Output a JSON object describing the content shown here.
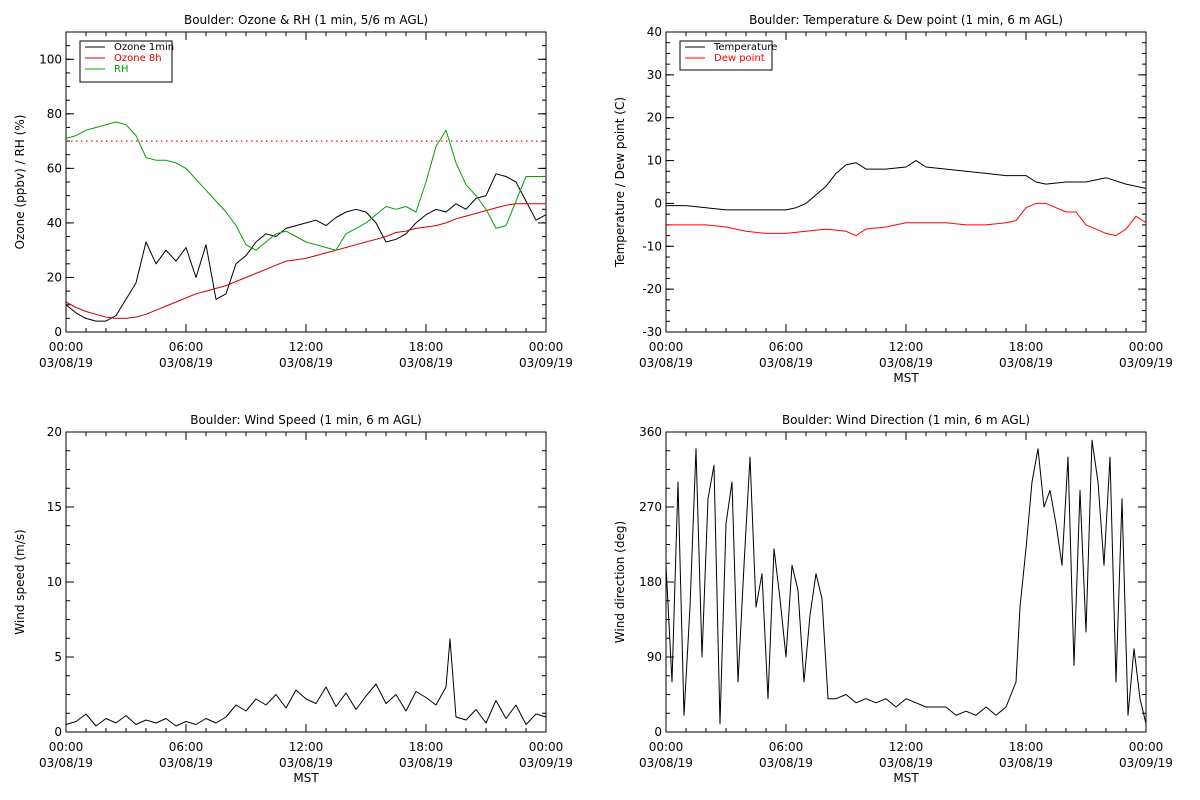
{
  "chart_data": [
    {
      "type": "line",
      "title": "Boulder: Ozone & RH (1 min, 5/6 m AGL)",
      "ylabel": "Ozone (ppbv) / RH (%)",
      "xlabel": "",
      "xlim": [
        0,
        24
      ],
      "ylim": [
        0,
        110
      ],
      "yticks": [
        0,
        20,
        40,
        60,
        80,
        100
      ],
      "xticks": [
        {
          "hour": 0,
          "time": "00:00",
          "date": "03/08/19"
        },
        {
          "hour": 6,
          "time": "06:00",
          "date": "03/08/19"
        },
        {
          "hour": 12,
          "time": "12:00",
          "date": "03/08/19"
        },
        {
          "hour": 18,
          "time": "18:00",
          "date": "03/08/19"
        },
        {
          "hour": 24,
          "time": "00:00",
          "date": "03/09/19"
        }
      ],
      "legend_position": "top-left",
      "reference_line": {
        "y": 70,
        "color": "#ff0000",
        "style": "dotted"
      },
      "series": [
        {
          "name": "Ozone 1min",
          "color": "#000000",
          "x": [
            0,
            0.5,
            1,
            1.5,
            2,
            2.5,
            3,
            3.5,
            4,
            4.5,
            5,
            5.5,
            6,
            6.5,
            7,
            7.5,
            8,
            8.5,
            9,
            9.5,
            10,
            10.5,
            11,
            11.5,
            12,
            12.5,
            13,
            13.5,
            14,
            14.5,
            15,
            15.5,
            16,
            16.5,
            17,
            17.5,
            18,
            18.5,
            19,
            19.5,
            20,
            20.5,
            21,
            21.5,
            22,
            22.5,
            23,
            23.5,
            24
          ],
          "y": [
            10,
            7,
            5,
            4,
            4,
            6,
            12,
            18,
            33,
            25,
            30,
            26,
            31,
            20,
            32,
            12,
            14,
            25,
            28,
            33,
            36,
            35,
            38,
            39,
            40,
            41,
            39,
            42,
            44,
            45,
            44,
            40,
            33,
            34,
            36,
            40,
            43,
            45,
            44,
            47,
            45,
            49,
            50,
            58,
            57,
            55,
            48,
            41,
            43
          ]
        },
        {
          "name": "Ozone 8h",
          "color": "#cc0000",
          "x": [
            0,
            0.5,
            1,
            1.5,
            2,
            2.5,
            3,
            3.5,
            4,
            4.5,
            5,
            5.5,
            6,
            6.5,
            7,
            7.5,
            8,
            8.5,
            9,
            9.5,
            10,
            10.5,
            11,
            11.5,
            12,
            12.5,
            13,
            13.5,
            14,
            14.5,
            15,
            15.5,
            16,
            16.5,
            17,
            17.5,
            18,
            18.5,
            19,
            19.5,
            20,
            20.5,
            21,
            21.5,
            22,
            22.5,
            23,
            23.5,
            24
          ],
          "y": [
            11,
            9,
            7.5,
            6.5,
            5.5,
            5,
            5,
            5.5,
            6.5,
            8,
            9.5,
            11,
            12.5,
            14,
            15,
            16,
            17,
            18.5,
            20,
            21.5,
            23,
            24.5,
            26,
            26.5,
            27,
            28,
            29,
            30,
            31,
            32,
            33,
            34,
            35,
            36.5,
            37,
            38,
            38.5,
            39,
            40,
            41.5,
            42.5,
            43.5,
            44.5,
            45.5,
            46.5,
            47,
            47,
            47,
            47
          ]
        },
        {
          "name": "RH",
          "color": "#00a000",
          "x": [
            0,
            0.5,
            1,
            1.5,
            2,
            2.5,
            3,
            3.5,
            4,
            4.5,
            5,
            5.5,
            6,
            6.5,
            7,
            7.5,
            8,
            8.5,
            9,
            9.5,
            10,
            10.5,
            11,
            11.5,
            12,
            12.5,
            13,
            13.5,
            14,
            14.5,
            15,
            15.5,
            16,
            16.5,
            17,
            17.5,
            18,
            18.5,
            19,
            19.5,
            20,
            20.5,
            21,
            21.5,
            22,
            22.5,
            23,
            23.5,
            24
          ],
          "y": [
            71,
            72,
            74,
            75,
            76,
            77,
            76,
            72,
            64,
            63,
            63,
            62,
            60,
            56,
            52,
            48,
            44,
            39,
            32,
            30,
            33,
            36,
            37,
            35,
            33,
            32,
            31,
            30,
            36,
            38,
            40,
            43,
            46,
            45,
            46,
            44,
            55,
            68,
            74,
            62,
            54,
            50,
            45,
            38,
            39,
            48,
            57,
            57,
            57
          ]
        }
      ]
    },
    {
      "type": "line",
      "title": "Boulder: Temperature & Dew point (1 min, 6 m AGL)",
      "ylabel": "Temperature / Dew point (C)",
      "xlabel": "MST",
      "xlim": [
        0,
        24
      ],
      "ylim": [
        -30,
        40
      ],
      "yticks": [
        -30,
        -20,
        -10,
        0,
        10,
        20,
        30,
        40
      ],
      "xticks": [
        {
          "hour": 0,
          "time": "00:00",
          "date": "03/08/19"
        },
        {
          "hour": 6,
          "time": "06:00",
          "date": "03/08/19"
        },
        {
          "hour": 12,
          "time": "12:00",
          "date": "03/08/19"
        },
        {
          "hour": 18,
          "time": "18:00",
          "date": "03/08/19"
        },
        {
          "hour": 24,
          "time": "00:00",
          "date": "03/09/19"
        }
      ],
      "legend_position": "top-left",
      "series": [
        {
          "name": "Temperature",
          "color": "#000000",
          "x": [
            0,
            1,
            2,
            3,
            4,
            5,
            6,
            6.5,
            7,
            7.5,
            8,
            8.5,
            9,
            9.5,
            10,
            11,
            12,
            12.5,
            13,
            14,
            15,
            16,
            17,
            18,
            18.5,
            19,
            20,
            21,
            22,
            23,
            24
          ],
          "y": [
            -0.5,
            -0.5,
            -1,
            -1.5,
            -1.5,
            -1.5,
            -1.5,
            -1,
            0,
            2,
            4,
            7,
            9,
            9.5,
            8,
            8,
            8.5,
            10,
            8.5,
            8,
            7.5,
            7,
            6.5,
            6.5,
            5,
            4.5,
            5,
            5,
            6,
            4.5,
            3.5
          ]
        },
        {
          "name": "Dew point",
          "color": "#ff0000",
          "x": [
            0,
            1,
            2,
            3,
            4,
            5,
            6,
            7,
            8,
            9,
            9.5,
            10,
            11,
            12,
            13,
            14,
            15,
            16,
            17,
            17.5,
            18,
            18.5,
            19,
            19.5,
            20,
            20.5,
            21,
            21.5,
            22,
            22.5,
            23,
            23.5,
            24
          ],
          "y": [
            -5,
            -5,
            -5,
            -5.5,
            -6.5,
            -7,
            -7,
            -6.5,
            -6,
            -6.5,
            -7.5,
            -6,
            -5.5,
            -4.5,
            -4.5,
            -4.5,
            -5,
            -5,
            -4.5,
            -4,
            -1,
            0,
            0,
            -1,
            -2,
            -2,
            -5,
            -6,
            -7,
            -7.5,
            -6,
            -3,
            -4.5
          ]
        }
      ]
    },
    {
      "type": "line",
      "title": "Boulder: Wind Speed (1 min, 6 m AGL)",
      "ylabel": "Wind speed (m/s)",
      "xlabel": "MST",
      "xlim": [
        0,
        24
      ],
      "ylim": [
        0,
        20
      ],
      "yticks": [
        0,
        5,
        10,
        15,
        20
      ],
      "xticks": [
        {
          "hour": 0,
          "time": "00:00",
          "date": "03/08/19"
        },
        {
          "hour": 6,
          "time": "06:00",
          "date": "03/08/19"
        },
        {
          "hour": 12,
          "time": "12:00",
          "date": "03/08/19"
        },
        {
          "hour": 18,
          "time": "18:00",
          "date": "03/08/19"
        },
        {
          "hour": 24,
          "time": "00:00",
          "date": "03/09/19"
        }
      ],
      "series": [
        {
          "name": "",
          "color": "#000000",
          "x": [
            0,
            0.5,
            1,
            1.5,
            2,
            2.5,
            3,
            3.5,
            4,
            4.5,
            5,
            5.5,
            6,
            6.5,
            7,
            7.5,
            8,
            8.5,
            9,
            9.5,
            10,
            10.5,
            11,
            11.5,
            12,
            12.5,
            13,
            13.5,
            14,
            14.5,
            15,
            15.5,
            16,
            16.5,
            17,
            17.5,
            18,
            18.5,
            19,
            19.2,
            19.5,
            20,
            20.5,
            21,
            21.5,
            22,
            22.5,
            23,
            23.5,
            24
          ],
          "y": [
            0.5,
            0.7,
            1.2,
            0.4,
            0.9,
            0.6,
            1.1,
            0.5,
            0.8,
            0.6,
            0.9,
            0.4,
            0.7,
            0.5,
            0.9,
            0.6,
            1,
            1.8,
            1.4,
            2.2,
            1.8,
            2.5,
            1.6,
            2.8,
            2.2,
            1.9,
            3,
            1.7,
            2.6,
            1.5,
            2.4,
            3.2,
            1.9,
            2.5,
            1.4,
            2.7,
            2.3,
            1.8,
            3,
            6.2,
            1,
            0.8,
            1.5,
            0.6,
            2.1,
            0.9,
            1.8,
            0.5,
            1.2,
            1
          ]
        }
      ]
    },
    {
      "type": "line",
      "title": "Boulder: Wind Direction (1 min, 6 m AGL)",
      "ylabel": "Wind direction (deg)",
      "xlabel": "MST",
      "xlim": [
        0,
        24
      ],
      "ylim": [
        0,
        360
      ],
      "yticks": [
        0,
        90,
        180,
        270,
        360
      ],
      "xticks": [
        {
          "hour": 0,
          "time": "00:00",
          "date": "03/08/19"
        },
        {
          "hour": 6,
          "time": "06:00",
          "date": "03/08/19"
        },
        {
          "hour": 12,
          "time": "12:00",
          "date": "03/08/19"
        },
        {
          "hour": 18,
          "time": "18:00",
          "date": "03/08/19"
        },
        {
          "hour": 24,
          "time": "00:00",
          "date": "03/09/19"
        }
      ],
      "series": [
        {
          "name": "",
          "color": "#000000",
          "x": [
            0,
            0.3,
            0.6,
            0.9,
            1.2,
            1.5,
            1.8,
            2.1,
            2.4,
            2.7,
            3,
            3.3,
            3.6,
            3.9,
            4.2,
            4.5,
            4.8,
            5.1,
            5.4,
            5.7,
            6,
            6.3,
            6.6,
            6.9,
            7.2,
            7.5,
            7.8,
            8.1,
            8.5,
            9,
            9.5,
            10,
            10.5,
            11,
            11.5,
            12,
            12.5,
            13,
            13.5,
            14,
            14.5,
            15,
            15.5,
            16,
            16.5,
            17,
            17.5,
            17.7,
            18,
            18.3,
            18.6,
            18.9,
            19.2,
            19.5,
            19.8,
            20.1,
            20.4,
            20.7,
            21,
            21.3,
            21.6,
            21.9,
            22.2,
            22.5,
            22.8,
            23.1,
            23.4,
            23.7,
            24
          ],
          "y": [
            200,
            60,
            300,
            20,
            150,
            340,
            90,
            280,
            320,
            10,
            250,
            300,
            60,
            200,
            330,
            150,
            190,
            40,
            220,
            160,
            90,
            200,
            170,
            60,
            140,
            190,
            160,
            40,
            40,
            45,
            35,
            40,
            35,
            40,
            30,
            40,
            35,
            30,
            30,
            30,
            20,
            25,
            20,
            30,
            20,
            30,
            60,
            150,
            220,
            300,
            340,
            270,
            290,
            250,
            200,
            330,
            80,
            290,
            120,
            350,
            300,
            200,
            330,
            60,
            280,
            20,
            100,
            40,
            10
          ]
        }
      ]
    }
  ]
}
